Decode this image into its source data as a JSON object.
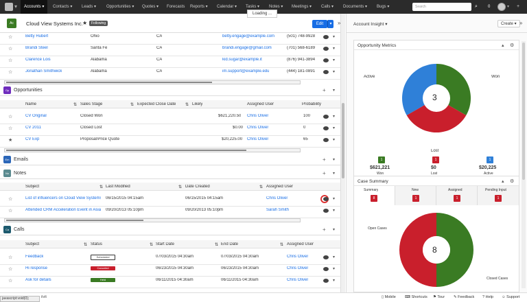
{
  "nav": {
    "items": [
      "Accounts",
      "Contacts",
      "Leads",
      "Opportunities",
      "Quotes",
      "Forecasts",
      "Reports",
      "Calendar",
      "Tasks",
      "Notes",
      "Meetings",
      "Calls",
      "Documents",
      "Bugs"
    ],
    "active": "Accounts",
    "search_placeholder": "Search",
    "count": "0"
  },
  "loading": "Loading ...",
  "record": {
    "avatar": "Ac",
    "name": "Cloud View Systems Inc.",
    "following": "Following",
    "edit": "Edit"
  },
  "contacts": {
    "rows": [
      {
        "name": "Betty Hubert",
        "city": "Ohio",
        "state": "CA",
        "email": "betty.engage@example.com",
        "phone": "(501) 748-9928"
      },
      {
        "name": "Brandi Steel",
        "city": "Santa Fe",
        "state": "CA",
        "email": "brandi.engage@gmail.com",
        "phone": "(701) 568-6189"
      },
      {
        "name": "Clarence Lois",
        "city": "Alabama",
        "state": "CA",
        "email": "kid.sugar@example.it",
        "phone": "(876) 941-3894"
      },
      {
        "name": "Jonathan Smithwick",
        "city": "Alabama",
        "state": "CA",
        "email": "im.support@example.edu",
        "phone": "(444) 181-0891"
      }
    ]
  },
  "opportunities": {
    "title": "Opportunities",
    "icon": "Op",
    "columns": [
      "Name",
      "Sales Stage",
      "Expected Close Date",
      "Likely",
      "Assigned User",
      "Probability"
    ],
    "rows": [
      {
        "name": "CV Original",
        "stage": "Closed Won",
        "likely": "$621,220.50",
        "user": "Chris Oliver",
        "prob": "100"
      },
      {
        "name": "CV 2011",
        "stage": "Closed Lost",
        "likely": "$0.00",
        "user": "Chris Oliver",
        "prob": "0"
      },
      {
        "name": "CV Exp",
        "stage": "Proposal/Price Quote",
        "likely": "$20,225.00",
        "user": "Chris Oliver",
        "prob": "65"
      }
    ]
  },
  "emails": {
    "title": "Emails",
    "icon": "Em"
  },
  "notes": {
    "title": "Notes",
    "icon": "No",
    "columns": [
      "Subject",
      "Last Modified",
      "Date Created",
      "Assigned User"
    ],
    "rows": [
      {
        "subject": "List of influencers on Cloud View Systems...",
        "modified": "06/15/2015 04:15am",
        "created": "06/15/2015 04:15am",
        "user": "Chris Oliver"
      },
      {
        "subject": "Attended CRM Acceleration Event in Asia",
        "modified": "09/20/2013 05:10pm",
        "created": "09/20/2013 05:10pm",
        "user": "Sarah Smith"
      }
    ]
  },
  "calls": {
    "title": "Calls",
    "icon": "Ca",
    "columns": [
      "Subject",
      "Status",
      "Start Date",
      "End Date",
      "Assigned User"
    ],
    "rows": [
      {
        "subject": "Feedback",
        "status": "Scheduled",
        "start": "07/03/2015 04:30am",
        "end": "07/03/2015 04:30am",
        "user": "Chris Oliver"
      },
      {
        "subject": "Hi response",
        "status": "Canceled",
        "start": "06/23/2015 04:30am",
        "end": "06/23/2015 04:30am",
        "user": "Chris Oliver"
      },
      {
        "subject": "Ask for details",
        "status": "Held",
        "start": "06/11/2015 04:30am",
        "end": "06/11/2015 04:30am",
        "user": "Chris Oliver"
      }
    ]
  },
  "right": {
    "title": "Account Insight",
    "create": "Create"
  },
  "opp_metrics": {
    "title": "Opportunity Metrics",
    "total": "3",
    "labels": {
      "active": "Active",
      "won": "Won",
      "lost": "Lost"
    },
    "stats": [
      {
        "count": "1",
        "amount": "$621,221",
        "label": "Won",
        "color": "#3a7b23"
      },
      {
        "count": "1",
        "amount": "$0",
        "label": "Lost",
        "color": "#c91f2c"
      },
      {
        "count": "1",
        "amount": "$20,225",
        "label": "Active",
        "color": "#2f80d8"
      }
    ]
  },
  "case_summary": {
    "title": "Case Summary",
    "tabs": [
      {
        "label": "Summary",
        "count": "8"
      },
      {
        "label": "New",
        "count": "1"
      },
      {
        "label": "Assigned",
        "count": "1"
      },
      {
        "label": "Pending Input",
        "count": "1"
      }
    ],
    "total": "8",
    "labels": {
      "open": "Open Cases",
      "closed": "Closed Cases"
    }
  },
  "footer": {
    "items": [
      "Mobile",
      "Shortcuts",
      "Tour",
      "Feedback",
      "Help",
      "Support"
    ],
    "status": "javascript:void(0);",
    "shortcut_text": "ilvlt"
  }
}
